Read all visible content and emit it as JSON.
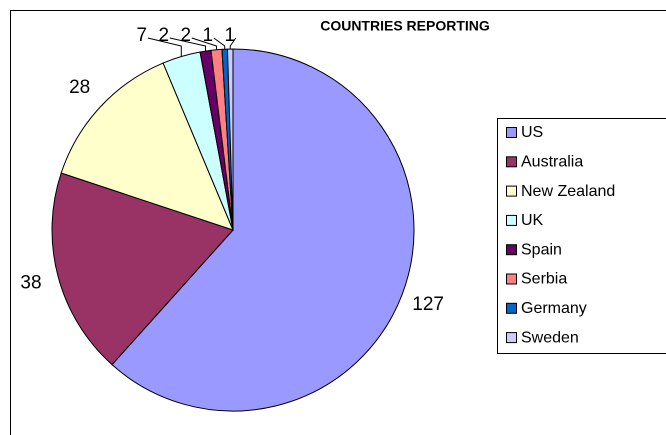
{
  "chart_data": {
    "type": "pie",
    "title": "COUNTRIES REPORTING",
    "categories": [
      "US",
      "Australia",
      "New Zealand",
      "UK",
      "Spain",
      "Serbia",
      "Germany",
      "Sweden"
    ],
    "values": [
      127,
      38,
      28,
      7,
      2,
      2,
      1,
      1
    ],
    "colors": [
      "#9999ff",
      "#993366",
      "#ffffcc",
      "#ccffff",
      "#660066",
      "#ff8080",
      "#0066cc",
      "#ccccff"
    ],
    "legend": "right"
  }
}
